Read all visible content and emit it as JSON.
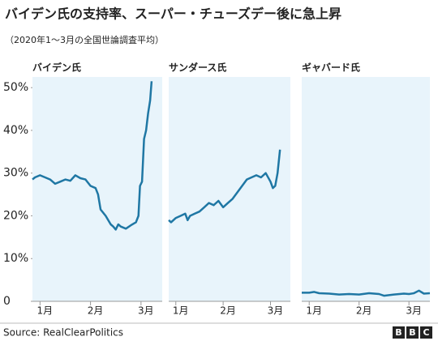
{
  "title": "バイデン氏の支持率、スーパー・チューズデー後に急上昇",
  "subtitle": "（2020年1～3月の全国世論調査平均）",
  "source": "Source: RealClearPolitics",
  "logo": [
    "B",
    "B",
    "C"
  ],
  "chart_data": [
    {
      "type": "line",
      "title": "バイデン氏",
      "color": "#1f77a4",
      "background": "#e8f4fb",
      "x": [
        0.85,
        0.9,
        1.0,
        1.1,
        1.2,
        1.3,
        1.4,
        1.5,
        1.6,
        1.7,
        1.8,
        1.9,
        2.0,
        2.1,
        2.15,
        2.2,
        2.3,
        2.4,
        2.45,
        2.5,
        2.55,
        2.6,
        2.7,
        2.8,
        2.9,
        2.95,
        2.98,
        3.02,
        3.06,
        3.1,
        3.14,
        3.18,
        3.21
      ],
      "values": [
        28.5,
        29,
        29.5,
        29,
        28.5,
        27.5,
        28,
        28.5,
        28.2,
        29.5,
        28.8,
        28.5,
        27,
        26.5,
        25,
        21.5,
        20,
        18,
        17.5,
        16.8,
        18,
        17.5,
        17,
        17.8,
        18.5,
        20,
        27,
        28,
        38,
        40,
        44,
        47,
        51.5
      ],
      "xlim": [
        0.85,
        3.42
      ],
      "xticks": [
        {
          "value": 1,
          "label": "1月"
        },
        {
          "value": 2,
          "label": "2月"
        },
        {
          "value": 3,
          "label": "3月"
        }
      ],
      "ylim": [
        0,
        52.5
      ],
      "yticks": [
        0,
        {
          "value": 10,
          "label": "10%"
        },
        {
          "value": 20,
          "label": "20%"
        },
        {
          "value": 30,
          "label": "30%"
        },
        {
          "value": 40,
          "label": "40%"
        },
        {
          "value": 50,
          "label": "50%"
        }
      ]
    },
    {
      "type": "line",
      "title": "サンダース氏",
      "color": "#1f77a4",
      "background": "#e8f4fb",
      "x": [
        0.85,
        0.9,
        1.0,
        1.1,
        1.2,
        1.25,
        1.3,
        1.4,
        1.5,
        1.6,
        1.7,
        1.8,
        1.9,
        2.0,
        2.1,
        2.2,
        2.3,
        2.4,
        2.5,
        2.6,
        2.7,
        2.8,
        2.9,
        3.0,
        3.05,
        3.1,
        3.15,
        3.2
      ],
      "values": [
        19,
        18.5,
        19.5,
        20,
        20.5,
        19,
        20,
        20.5,
        21,
        22,
        23,
        22.5,
        23.5,
        22,
        23,
        24,
        25.5,
        27,
        28.5,
        29,
        29.5,
        29,
        30,
        28,
        26.5,
        27,
        30,
        35.5
      ],
      "xlim": [
        0.85,
        3.42
      ],
      "xticks": [
        {
          "value": 1,
          "label": "1月"
        },
        {
          "value": 2,
          "label": "2月"
        },
        {
          "value": 3,
          "label": "3月"
        }
      ],
      "ylim": [
        0,
        52.5
      ]
    },
    {
      "type": "line",
      "title": "ギャバード氏",
      "color": "#1f77a4",
      "background": "#e8f4fb",
      "x": [
        0.85,
        1.0,
        1.1,
        1.2,
        1.4,
        1.6,
        1.8,
        2.0,
        2.2,
        2.4,
        2.5,
        2.7,
        2.9,
        3.0,
        3.1,
        3.2,
        3.3,
        3.42
      ],
      "values": [
        2,
        2,
        2.2,
        1.9,
        1.8,
        1.6,
        1.7,
        1.6,
        1.9,
        1.7,
        1.3,
        1.6,
        1.8,
        1.7,
        1.9,
        2.5,
        1.8,
        1.9
      ],
      "xlim": [
        0.85,
        3.42
      ],
      "xticks": [
        {
          "value": 1,
          "label": "1月"
        },
        {
          "value": 2,
          "label": "2月"
        },
        {
          "value": 3,
          "label": "3月"
        }
      ],
      "ylim": [
        0,
        52.5
      ]
    }
  ]
}
